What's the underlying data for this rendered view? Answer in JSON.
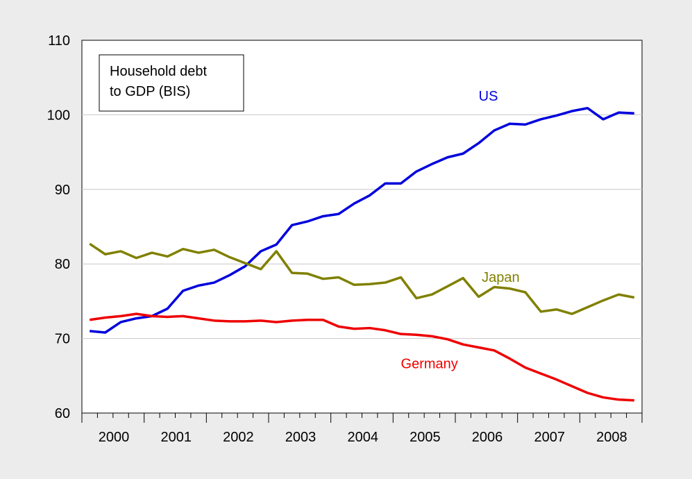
{
  "chart_data": {
    "type": "line",
    "title": "Household debt\nto GDP (BIS)",
    "xlabel": "",
    "ylabel": "",
    "xlim": [
      1999.875,
      2008.875
    ],
    "ylim": [
      60,
      110
    ],
    "yticks": [
      60,
      70,
      80,
      90,
      100,
      110
    ],
    "xticks": [
      2000,
      2001,
      2002,
      2003,
      2004,
      2005,
      2006,
      2007,
      2008
    ],
    "grid": true,
    "x": [
      2000.0,
      2000.25,
      2000.5,
      2000.75,
      2001.0,
      2001.25,
      2001.5,
      2001.75,
      2002.0,
      2002.25,
      2002.5,
      2002.75,
      2003.0,
      2003.25,
      2003.5,
      2003.75,
      2004.0,
      2004.25,
      2004.5,
      2004.75,
      2005.0,
      2005.25,
      2005.5,
      2005.75,
      2006.0,
      2006.25,
      2006.5,
      2006.75,
      2007.0,
      2007.25,
      2007.5,
      2007.75,
      2008.0,
      2008.25,
      2008.5,
      2008.75
    ],
    "series": [
      {
        "name": "US",
        "color": "#0000dd",
        "label_x": 2006.25,
        "label_y": 101.9,
        "values": [
          71.0,
          70.8,
          72.2,
          72.7,
          73.0,
          74.0,
          76.4,
          77.1,
          77.5,
          78.5,
          79.7,
          81.7,
          82.6,
          85.2,
          85.7,
          86.4,
          86.7,
          88.1,
          89.2,
          90.8,
          90.8,
          92.4,
          93.4,
          94.3,
          94.8,
          96.2,
          97.9,
          98.8,
          98.7,
          99.4,
          99.9,
          100.5,
          100.9,
          99.4,
          100.3,
          100.2
        ]
      },
      {
        "name": "Japan",
        "color": "#808000",
        "label_x": 2006.3,
        "label_y": 77.6,
        "values": [
          82.7,
          81.3,
          81.7,
          80.8,
          81.5,
          81.0,
          82.0,
          81.5,
          81.9,
          80.9,
          80.1,
          79.3,
          81.7,
          78.8,
          78.7,
          78.0,
          78.2,
          77.2,
          77.3,
          77.5,
          78.2,
          75.4,
          75.9,
          77.0,
          78.1,
          75.6,
          76.9,
          76.7,
          76.2,
          73.6,
          73.9,
          73.3,
          74.2,
          75.1,
          75.9,
          75.5
        ]
      },
      {
        "name": "Germany",
        "color": "#ee0000",
        "label_x": 2005.0,
        "label_y": 66.0,
        "values": [
          72.5,
          72.8,
          73.0,
          73.3,
          73.0,
          72.9,
          73.0,
          72.7,
          72.4,
          72.3,
          72.3,
          72.4,
          72.2,
          72.4,
          72.5,
          72.5,
          71.6,
          71.3,
          71.4,
          71.1,
          70.6,
          70.5,
          70.3,
          69.9,
          69.2,
          68.8,
          68.4,
          67.3,
          66.1,
          65.3,
          64.5,
          63.6,
          62.7,
          62.1,
          61.8,
          61.7
        ]
      }
    ]
  }
}
